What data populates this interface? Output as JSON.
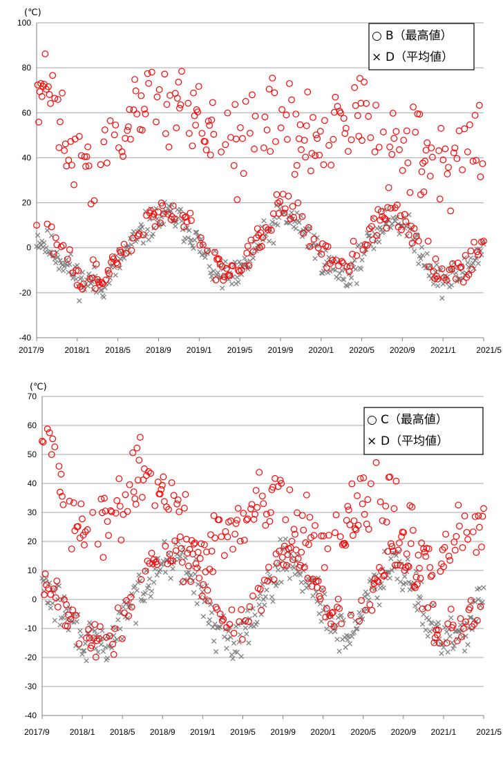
{
  "chart_data": [
    {
      "type": "scatter",
      "unit_label": "(℃)",
      "xlim": [
        "2017/9",
        "2021/5"
      ],
      "ylim": [
        -40,
        100
      ],
      "y_ticks": [
        -40,
        -20,
        0,
        20,
        40,
        60,
        80,
        100
      ],
      "x_ticks": [
        "2017/9",
        "2018/1",
        "2018/5",
        "2018/9",
        "2019/1",
        "2019/5",
        "2019/9",
        "2020/1",
        "2020/5",
        "2020/9",
        "2021/1",
        "2021/5"
      ],
      "grid": true,
      "legend_position": "top-right",
      "series": [
        {
          "name": "B（最高値）",
          "symbol": "○",
          "marker": "circle",
          "color": "#ff0000",
          "curve": {
            "t": [
              0,
              0.02,
              0.04,
              0.06,
              0.09,
              0.12,
              0.16,
              0.22,
              0.26,
              0.3,
              0.35,
              0.38,
              0.42,
              0.45,
              0.5,
              0.53,
              0.57,
              0.61,
              0.66,
              0.7,
              0.74,
              0.78,
              0.81,
              0.86,
              0.9,
              0.95,
              1.0
            ],
            "y": [
              72,
              70,
              63,
              50,
              40,
              30,
              42,
              58,
              66,
              67,
              58,
              47,
              41,
              45,
              58,
              58,
              51,
              44,
              48,
              55,
              55,
              48,
              40,
              38,
              37,
              44,
              45
            ]
          },
          "scatter_spread": 14,
          "low_band": {
            "t": [
              0,
              0.05,
              0.1,
              0.15,
              0.2,
              0.25,
              0.3,
              0.35,
              0.4,
              0.45,
              0.5,
              0.55,
              0.6,
              0.65,
              0.7,
              0.75,
              0.8,
              0.85,
              0.9,
              0.95,
              1.0
            ],
            "y": [
              10,
              0,
              -12,
              -14,
              0,
              12,
              18,
              10,
              -8,
              -10,
              5,
              18,
              12,
              -5,
              -8,
              8,
              18,
              5,
              -12,
              -10,
              2
            ]
          }
        },
        {
          "name": "D（平均値）",
          "symbol": "×",
          "marker": "x",
          "color": "#808080",
          "curve": {
            "t": [
              0,
              0.05,
              0.1,
              0.15,
              0.2,
              0.25,
              0.3,
              0.35,
              0.4,
              0.45,
              0.5,
              0.55,
              0.6,
              0.65,
              0.7,
              0.75,
              0.8,
              0.85,
              0.9,
              0.95,
              1.0
            ],
            "y": [
              5,
              -4,
              -15,
              -16,
              -2,
              10,
              15,
              6,
              -12,
              -14,
              2,
              15,
              8,
              -8,
              -12,
              4,
              15,
              2,
              -15,
              -12,
              0
            ]
          },
          "scatter_spread": 5
        }
      ]
    },
    {
      "type": "scatter",
      "unit_label": "(℃)",
      "xlim": [
        "2017/9",
        "2021/5"
      ],
      "ylim": [
        -40,
        70
      ],
      "y_ticks": [
        -40,
        -30,
        -20,
        -10,
        0,
        10,
        20,
        30,
        40,
        50,
        60,
        70
      ],
      "x_ticks": [
        "2017/9",
        "2018/1",
        "2018/5",
        "2018/9",
        "2019/1",
        "2019/5",
        "2019/9",
        "2020/1",
        "2020/5",
        "2020/9",
        "2021/1",
        "2021/5"
      ],
      "grid": true,
      "legend_position": "top-right",
      "series": [
        {
          "name": "C（最高値）",
          "symbol": "○",
          "marker": "circle",
          "color": "#ff0000",
          "curve": {
            "t": [
              0,
              0.02,
              0.05,
              0.08,
              0.1,
              0.13,
              0.16,
              0.2,
              0.24,
              0.27,
              0.3,
              0.34,
              0.38,
              0.42,
              0.46,
              0.5,
              0.54,
              0.57,
              0.6,
              0.64,
              0.68,
              0.72,
              0.76,
              0.8,
              0.84,
              0.88,
              0.92,
              0.96,
              1.0
            ],
            "y": [
              48,
              50,
              35,
              27,
              20,
              22,
              30,
              40,
              44,
              40,
              30,
              20,
              18,
              20,
              25,
              35,
              38,
              30,
              20,
              18,
              22,
              30,
              35,
              28,
              20,
              15,
              18,
              22,
              25
            ]
          },
          "scatter_spread": 9,
          "low_band": {
            "t": [
              0,
              0.05,
              0.1,
              0.15,
              0.2,
              0.25,
              0.3,
              0.35,
              0.4,
              0.45,
              0.5,
              0.55,
              0.6,
              0.65,
              0.7,
              0.75,
              0.8,
              0.85,
              0.9,
              0.95,
              1.0
            ],
            "y": [
              8,
              -2,
              -12,
              -14,
              -2,
              12,
              17,
              10,
              -8,
              -10,
              4,
              17,
              12,
              -6,
              -8,
              6,
              17,
              4,
              -12,
              -10,
              2
            ]
          }
        },
        {
          "name": "D（平均値）",
          "symbol": "×",
          "marker": "x",
          "color": "#808080",
          "curve": {
            "t": [
              0,
              0.05,
              0.1,
              0.15,
              0.2,
              0.25,
              0.3,
              0.35,
              0.4,
              0.45,
              0.5,
              0.55,
              0.6,
              0.65,
              0.7,
              0.75,
              0.8,
              0.85,
              0.9,
              0.95,
              1.0
            ],
            "y": [
              5,
              -4,
              -15,
              -16,
              -2,
              10,
              15,
              6,
              -12,
              -14,
              2,
              15,
              8,
              -8,
              -12,
              4,
              15,
              2,
              -15,
              -12,
              0
            ]
          },
          "scatter_spread": 5
        }
      ]
    }
  ]
}
